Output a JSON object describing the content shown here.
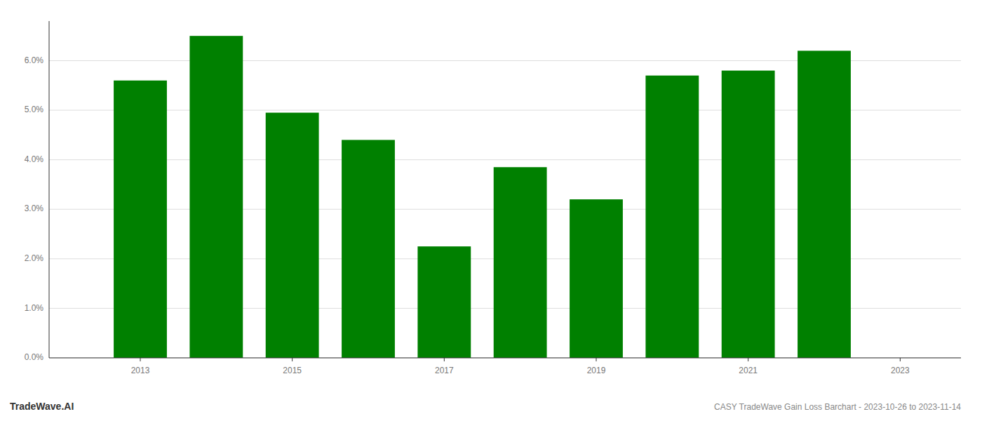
{
  "chart_data": {
    "type": "bar",
    "title": "CASY TradeWave Gain Loss Barchart - 2023-10-26 to 2023-11-14",
    "annotations": [
      "TradeWave.AI"
    ],
    "x": [
      2013,
      2014,
      2015,
      2016,
      2017,
      2018,
      2019,
      2020,
      2021,
      2022
    ],
    "values": [
      0.056,
      0.065,
      0.0495,
      0.044,
      0.0225,
      0.0385,
      0.032,
      0.057,
      0.058,
      0.062
    ],
    "color": "#008000",
    "xlim": [
      2011.8,
      2023.8
    ],
    "xticks": [
      2013,
      2015,
      2017,
      2019,
      2021,
      2023
    ],
    "ylim": [
      0.0,
      0.068
    ],
    "yticks": [
      {
        "value": 0.0,
        "label": "0.0%"
      },
      {
        "value": 0.01,
        "label": "1.0%"
      },
      {
        "value": 0.02,
        "label": "2.0%"
      },
      {
        "value": 0.03,
        "label": "3.0%"
      },
      {
        "value": 0.04,
        "label": "4.0%"
      },
      {
        "value": 0.05,
        "label": "5.0%"
      },
      {
        "value": 0.06,
        "label": "6.0%"
      }
    ],
    "grid": true
  }
}
